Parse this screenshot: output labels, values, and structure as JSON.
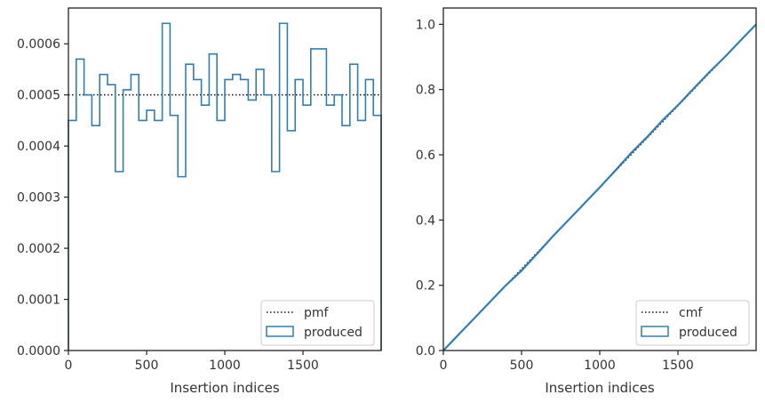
{
  "colors": {
    "produced": "#2f7fb4",
    "reference": "#111111",
    "axes": "#222222",
    "text": "#333333"
  },
  "chart_data": [
    {
      "type": "step",
      "xlabel": "Insertion indices",
      "ylabel": "",
      "xlim": [
        0,
        2000
      ],
      "ylim": [
        0,
        0.00067
      ],
      "xticks": [
        0,
        500,
        1000,
        1500
      ],
      "xtick_labels": [
        "0",
        "500",
        "1000",
        "1500"
      ],
      "yticks": [
        0,
        0.0001,
        0.0002,
        0.0003,
        0.0004,
        0.0005,
        0.0006
      ],
      "ytick_labels": [
        "0.0000",
        "0.0001",
        "0.0002",
        "0.0003",
        "0.0004",
        "0.0005",
        "0.0006"
      ],
      "legend_position": "lower-right",
      "bin_width": 50,
      "series": [
        {
          "name": "pmf",
          "style": "dotted",
          "values": [
            0.0005,
            0.0005
          ]
        },
        {
          "name": "produced",
          "style": "step",
          "values": [
            0.00045,
            0.00057,
            0.0005,
            0.00044,
            0.00054,
            0.00052,
            0.00035,
            0.00051,
            0.00054,
            0.00045,
            0.00047,
            0.00045,
            0.00064,
            0.00046,
            0.00034,
            0.00056,
            0.00053,
            0.00048,
            0.00058,
            0.00045,
            0.00053,
            0.00054,
            0.00053,
            0.00049,
            0.00055,
            0.0005,
            0.00035,
            0.00064,
            0.00043,
            0.00053,
            0.00048,
            0.00059,
            0.00059,
            0.00048,
            0.0005,
            0.00044,
            0.00056,
            0.00045,
            0.00053,
            0.00046
          ]
        }
      ]
    },
    {
      "type": "line",
      "xlabel": "Insertion indices",
      "ylabel": "",
      "xlim": [
        0,
        2000
      ],
      "ylim": [
        0,
        1.05
      ],
      "xticks": [
        0,
        500,
        1000,
        1500
      ],
      "xtick_labels": [
        "0",
        "500",
        "1000",
        "1500"
      ],
      "yticks": [
        0,
        0.2,
        0.4,
        0.6,
        0.8,
        1.0
      ],
      "ytick_labels": [
        "0.0",
        "0.2",
        "0.4",
        "0.6",
        "0.8",
        "1.0"
      ],
      "legend_position": "lower-right",
      "series": [
        {
          "name": "cmf",
          "style": "dotted",
          "x": [
            0,
            2000
          ],
          "y": [
            0,
            1.0
          ]
        },
        {
          "name": "produced",
          "style": "line",
          "x": [
            0,
            100,
            200,
            300,
            400,
            500,
            600,
            700,
            800,
            900,
            1000,
            1100,
            1200,
            1300,
            1400,
            1500,
            1600,
            1700,
            1800,
            1900,
            2000
          ],
          "y": [
            0,
            0.05,
            0.1,
            0.15,
            0.2,
            0.245,
            0.297,
            0.35,
            0.4,
            0.45,
            0.5,
            0.552,
            0.605,
            0.653,
            0.705,
            0.752,
            0.803,
            0.853,
            0.9,
            0.95,
            1.0
          ]
        }
      ]
    }
  ]
}
